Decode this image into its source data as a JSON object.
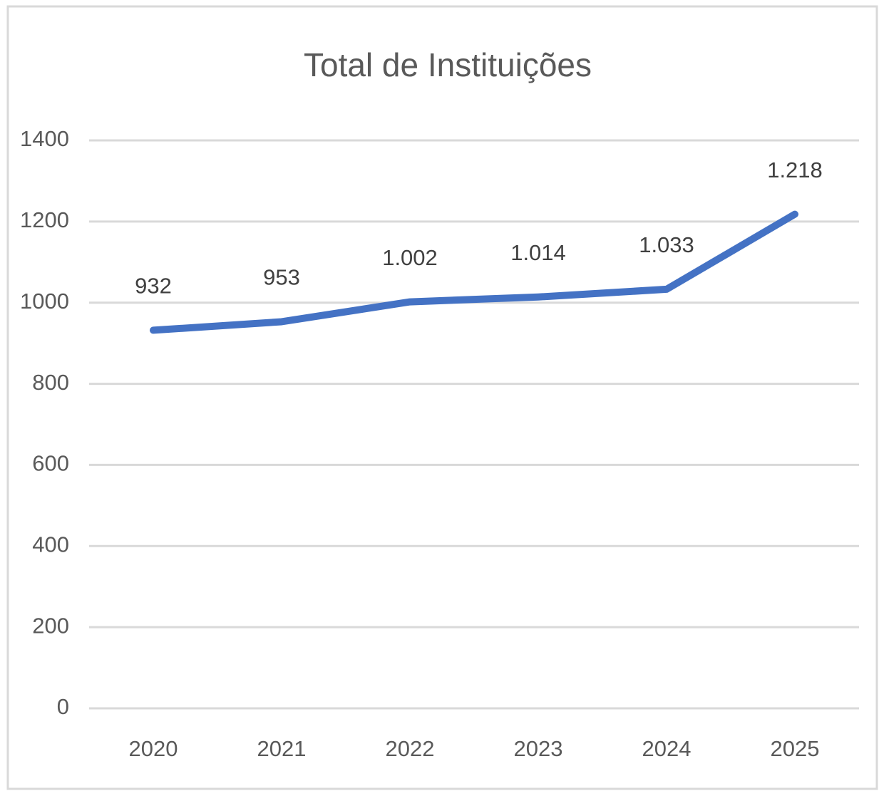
{
  "chart_data": {
    "type": "line",
    "title": "Total de Instituições",
    "categories": [
      "2020",
      "2021",
      "2022",
      "2023",
      "2024",
      "2025"
    ],
    "series": [
      {
        "name": "Total de Instituições",
        "color": "#4472c4",
        "values": [
          932,
          953,
          1002,
          1014,
          1033,
          1218
        ],
        "value_labels": [
          "932",
          "953",
          "1.002",
          "1.014",
          "1.033",
          "1.218"
        ]
      }
    ],
    "ylim": [
      0,
      1400
    ],
    "yticks": [
      0,
      200,
      400,
      600,
      800,
      1000,
      1200,
      1400
    ],
    "grid": true
  }
}
